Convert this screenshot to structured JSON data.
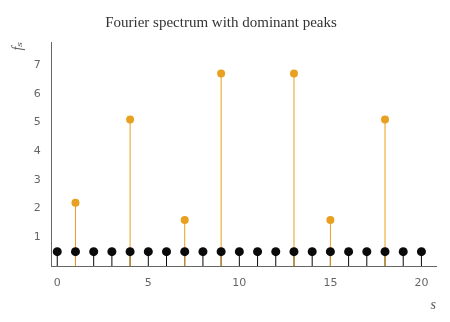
{
  "chart_data": {
    "type": "stem",
    "title": "Fourier spectrum with dominant peaks",
    "xlabel": "s",
    "ylabel": "fₛ",
    "xlim": [
      -0.3,
      20.8
    ],
    "ylim": [
      0,
      7.8
    ],
    "xticks": [
      0,
      5,
      10,
      15,
      20
    ],
    "yticks": [
      1,
      2,
      3,
      4,
      5,
      6,
      7
    ],
    "grid": false,
    "series": [
      {
        "color": "#0a0a0a",
        "x": [
          0,
          1,
          2,
          3,
          4,
          5,
          6,
          7,
          8,
          9,
          10,
          11,
          12,
          13,
          14,
          15,
          16,
          17,
          18,
          19,
          20
        ],
        "values": [
          0.5,
          0.5,
          0.5,
          0.5,
          0.5,
          0.5,
          0.5,
          0.5,
          0.5,
          0.5,
          0.5,
          0.5,
          0.5,
          0.5,
          0.5,
          0.5,
          0.5,
          0.5,
          0.5,
          0.5,
          0.5
        ]
      },
      {
        "color": "#E8A020",
        "x": [
          1,
          4,
          7,
          9,
          13,
          15,
          18
        ],
        "values": [
          2.2,
          5.1,
          1.6,
          6.7,
          6.7,
          1.6,
          5.1
        ]
      }
    ]
  }
}
